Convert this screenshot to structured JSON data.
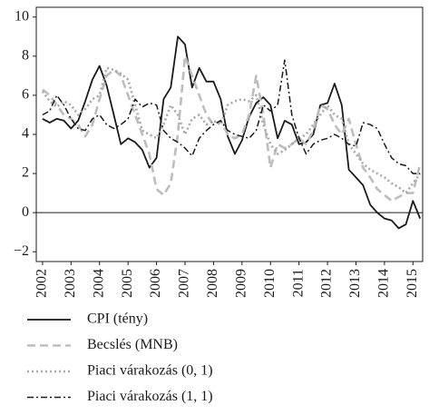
{
  "chart_data": {
    "type": "line",
    "x": [
      2002,
      2002.25,
      2002.5,
      2002.75,
      2003,
      2003.25,
      2003.5,
      2003.75,
      2004,
      2004.25,
      2004.5,
      2004.75,
      2005,
      2005.25,
      2005.5,
      2005.75,
      2006,
      2006.25,
      2006.5,
      2006.75,
      2007,
      2007.25,
      2007.5,
      2007.75,
      2008,
      2008.25,
      2008.5,
      2008.75,
      2009,
      2009.25,
      2009.5,
      2009.75,
      2010,
      2010.25,
      2010.5,
      2010.75,
      2011,
      2011.25,
      2011.5,
      2011.75,
      2012,
      2012.25,
      2012.5,
      2012.75,
      2013,
      2013.25,
      2013.5,
      2013.75,
      2014,
      2014.25,
      2014.5,
      2014.75,
      2015,
      2015.25
    ],
    "series": [
      {
        "name": "CPI (tény)",
        "color": "#1a1a1a",
        "dash": "solid",
        "values": [
          4.8,
          4.6,
          4.8,
          4.7,
          4.3,
          4.7,
          5.7,
          6.8,
          7.5,
          6.5,
          5.0,
          3.5,
          3.8,
          3.6,
          3.2,
          2.3,
          2.8,
          5.8,
          6.4,
          9.0,
          8.6,
          6.4,
          7.4,
          6.7,
          6.7,
          5.8,
          3.9,
          3.0,
          3.7,
          4.9,
          5.6,
          5.9,
          5.5,
          3.8,
          4.7,
          4.5,
          3.5,
          3.6,
          4.0,
          5.5,
          5.6,
          6.6,
          5.5,
          2.2,
          1.8,
          1.4,
          0.4,
          0.0,
          -0.3,
          -0.4,
          -0.8,
          -0.6,
          0.6,
          -0.3
        ]
      },
      {
        "name": "Becslés (MNB)",
        "color": "#bdbdbd",
        "dash": "dashed",
        "values": [
          6.3,
          6.0,
          5.5,
          5.0,
          4.8,
          4.5,
          3.9,
          4.5,
          5.8,
          7.0,
          7.3,
          7.0,
          6.0,
          5.0,
          4.0,
          3.0,
          1.2,
          0.9,
          1.5,
          4.0,
          8.0,
          7.0,
          6.0,
          5.0,
          4.5,
          4.7,
          4.0,
          3.8,
          4.0,
          5.0,
          7.0,
          5.0,
          2.3,
          3.5,
          3.3,
          3.5,
          3.8,
          3.5,
          4.2,
          5.5,
          5.3,
          4.5,
          4.0,
          4.8,
          3.5,
          2.3,
          1.8,
          1.2,
          0.9,
          0.6,
          0.8,
          1.0,
          1.0,
          2.5
        ]
      },
      {
        "name": "Piaci várakozás (0, 1)",
        "color": "#a8a8a8",
        "dash": "dotted",
        "values": [
          6.2,
          5.7,
          5.4,
          5.7,
          5.5,
          5.0,
          5.3,
          5.8,
          6.0,
          7.4,
          7.3,
          7.1,
          6.8,
          5.5,
          4.2,
          4.0,
          3.8,
          4.5,
          5.5,
          5.0,
          4.0,
          4.8,
          5.0,
          4.5,
          4.7,
          4.5,
          5.5,
          5.7,
          5.8,
          5.7,
          6.0,
          4.5,
          3.5,
          3.0,
          3.2,
          3.5,
          3.8,
          4.0,
          4.5,
          5.0,
          5.5,
          5.0,
          4.8,
          3.5,
          3.0,
          2.5,
          2.2,
          2.0,
          1.8,
          1.5,
          1.3,
          1.0,
          1.5,
          2.0
        ]
      },
      {
        "name": "Piaci várakozás (1, 1)",
        "color": "#1a1a1a",
        "dash": "dashdot",
        "values": [
          5.0,
          5.2,
          6.0,
          5.5,
          4.8,
          4.3,
          4.2,
          4.8,
          5.0,
          4.5,
          4.3,
          4.5,
          4.8,
          5.8,
          5.4,
          5.6,
          5.5,
          4.2,
          3.8,
          3.6,
          3.3,
          2.9,
          3.8,
          4.2,
          4.5,
          4.7,
          4.2,
          4.0,
          3.9,
          3.8,
          4.2,
          5.5,
          5.2,
          5.5,
          7.8,
          5.0,
          3.8,
          3.0,
          3.5,
          3.7,
          3.8,
          4.0,
          3.8,
          3.5,
          3.4,
          4.6,
          4.5,
          4.3,
          3.5,
          2.8,
          2.5,
          2.4,
          2.0,
          2.0
        ]
      }
    ],
    "xlim": [
      2001.78,
      2015.34
    ],
    "xticks": [
      2002,
      2003,
      2004,
      2005,
      2006,
      2007,
      2008,
      2009,
      2010,
      2011,
      2012,
      2013,
      2014,
      2015
    ],
    "ylim": [
      -2.5,
      10.5
    ],
    "yticks": [
      {
        "value": -2,
        "label": "−2"
      },
      0,
      2,
      4,
      6,
      8,
      10
    ],
    "zero_line": true,
    "legend": "bottom"
  }
}
